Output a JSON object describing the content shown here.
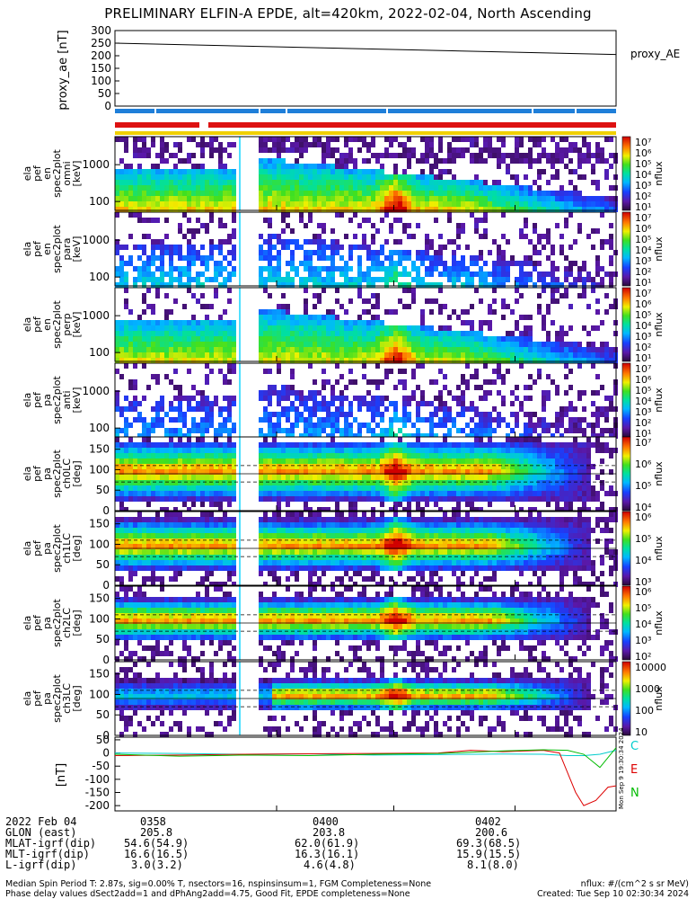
{
  "title": "PRELIMINARY ELFIN-A EPDE, alt=420km, 2022-02-04, North Ascending",
  "stamp": "Mon Sep 9 19:30:34 2024",
  "proxy_panel": {
    "ylabel": "proxy_ae [nT]",
    "yticks": [
      "300",
      "250",
      "200",
      "150",
      "100",
      "50",
      "0"
    ],
    "legend": "proxy_AE"
  },
  "status_colors": {
    "blue": "#1f7fd9",
    "red": "#dd1111",
    "yellow": "#f0d000"
  },
  "panels": [
    {
      "id": "p1",
      "ylabel": [
        "ela",
        "pef",
        "en",
        "spec2plot",
        "omni",
        "[keV]"
      ],
      "yticks": [
        "1000",
        "100"
      ],
      "cb_ticks": [
        "10⁷",
        "10⁶",
        "10⁵",
        "10⁴",
        "10³",
        "10²",
        "10¹"
      ],
      "unit": "nflux"
    },
    {
      "id": "p2",
      "ylabel": [
        "ela",
        "pef",
        "en",
        "spec2plot",
        "para",
        "[keV]"
      ],
      "yticks": [
        "1000",
        "100"
      ],
      "cb_ticks": [
        "10⁷",
        "10⁶",
        "10⁵",
        "10⁴",
        "10³",
        "10²",
        "10¹"
      ],
      "unit": "nflux"
    },
    {
      "id": "p3",
      "ylabel": [
        "ela",
        "pef",
        "en",
        "spec2plot",
        "perp",
        "[keV]"
      ],
      "yticks": [
        "1000",
        "100"
      ],
      "cb_ticks": [
        "10⁷",
        "10⁶",
        "10⁵",
        "10⁴",
        "10³",
        "10²",
        "10¹"
      ],
      "unit": "nflux"
    },
    {
      "id": "p4",
      "ylabel": [
        "ela",
        "pef",
        "pa",
        "spec2plot",
        "anti",
        "[keV]"
      ],
      "yticks": [
        "1000",
        "100"
      ],
      "cb_ticks": [
        "10⁷",
        "10⁶",
        "10⁵",
        "10⁴",
        "10³",
        "10²",
        "10¹"
      ],
      "unit": "nflux"
    },
    {
      "id": "p5",
      "ylabel": [
        "ela",
        "pef",
        "pa",
        "spec2plot",
        "ch0LC",
        "[deg]"
      ],
      "yticks": [
        "150",
        "100",
        "50",
        "0"
      ],
      "cb_ticks": [
        "10⁷",
        "10⁶",
        "10⁵",
        "10⁴"
      ],
      "unit": "nflux"
    },
    {
      "id": "p6",
      "ylabel": [
        "ela",
        "pef",
        "pa",
        "spec2plot",
        "ch1LC",
        "[deg]"
      ],
      "yticks": [
        "150",
        "100",
        "50",
        "0"
      ],
      "cb_ticks": [
        "10⁶",
        "10⁵",
        "10⁴",
        "10³"
      ],
      "unit": "nflux"
    },
    {
      "id": "p7",
      "ylabel": [
        "ela",
        "pef",
        "pa",
        "spec2plot",
        "ch2LC",
        "[deg]"
      ],
      "yticks": [
        "150",
        "100",
        "50",
        "0"
      ],
      "cb_ticks": [
        "10⁶",
        "10⁵",
        "10⁴",
        "10³",
        "10²"
      ],
      "unit": "nflux"
    },
    {
      "id": "p8",
      "ylabel": [
        "ela",
        "pef",
        "pa",
        "spec2plot",
        "ch3LC",
        "[deg]"
      ],
      "yticks": [
        "150",
        "100",
        "50",
        "0"
      ],
      "cb_ticks": [
        "10000",
        "1000",
        "100",
        "10"
      ],
      "unit": "nflux"
    }
  ],
  "mag_panel": {
    "ylabel": "[nT]",
    "yticks": [
      "50",
      "0",
      "-50",
      "-100",
      "-150",
      "-200"
    ],
    "legend": [
      "C",
      "E",
      "N"
    ],
    "legend_colors": [
      "#00cccc",
      "#dd0000",
      "#00bb00"
    ]
  },
  "chart_data": {
    "type": "line",
    "title": "PRELIMINARY ELFIN-A EPDE, alt=420km, 2022-02-04, North Ascending",
    "x_ticks": [
      "0358",
      "0400",
      "0402"
    ],
    "proxy_ae": {
      "ylim": [
        0,
        300
      ],
      "x_min": [
        0,
        6.2
      ],
      "values": [
        250,
        205
      ]
    },
    "mag": {
      "ylim": [
        -220,
        60
      ],
      "series": [
        {
          "name": "C",
          "x_min": [
            0,
            0.8,
            1.6,
            2.4,
            3.2,
            4.0,
            4.8,
            5.3,
            5.6,
            5.8,
            6.0,
            6.2
          ],
          "values": [
            0,
            -2,
            -5,
            -3,
            -8,
            -6,
            -4,
            -5,
            -10,
            -10,
            -5,
            10
          ]
        },
        {
          "name": "E",
          "x_min": [
            0,
            0.8,
            1.6,
            2.4,
            3.2,
            4.0,
            4.4,
            4.8,
            5.3,
            5.5,
            5.7,
            5.8,
            5.95,
            6.1,
            6.2
          ],
          "values": [
            -10,
            -8,
            -5,
            -3,
            -2,
            0,
            10,
            5,
            10,
            0,
            -150,
            -200,
            -180,
            -130,
            -125
          ]
        },
        {
          "name": "N",
          "x_min": [
            0,
            0.8,
            1.6,
            2.4,
            3.2,
            4.0,
            4.8,
            5.3,
            5.6,
            5.8,
            6.0,
            6.2
          ],
          "values": [
            -5,
            -12,
            -8,
            -10,
            -5,
            -2,
            8,
            12,
            10,
            -5,
            -55,
            20
          ]
        }
      ]
    }
  },
  "footer": {
    "rows": [
      {
        "label": "2022 Feb 04",
        "c1": "0358",
        "c2": "0400",
        "c3": "0402"
      },
      {
        "label": "GLON (east)",
        "c1": "205.8",
        "c2": "203.8",
        "c3": "200.6"
      },
      {
        "label": "MLAT-igrf(dip)",
        "c1": "54.6(54.9)",
        "c2": "62.0(61.9)",
        "c3": "69.3(68.5)"
      },
      {
        "label": "MLT-igrf(dip)",
        "c1": "16.6(16.5)",
        "c2": "16.3(16.1)",
        "c3": "15.9(15.5)"
      },
      {
        "label": "L-igrf(dip)",
        "c1": "3.0(3.2)",
        "c2": "4.6(4.8)",
        "c3": "8.1(8.0)"
      }
    ],
    "note1": "Median Spin Period T: 2.87s, sig=0.00% T, nsectors=16, nspinsinsum=1, FGM Completeness=None",
    "note1_right": "nflux: #/(cm^2 s sr MeV)",
    "note2": "Phase delay values dSect2add=1 and dPhAng2add=4.75, Good Fit, EPDE completeness=None",
    "note2_right": "Created: Tue Sep 10 02:30:34 2024"
  }
}
